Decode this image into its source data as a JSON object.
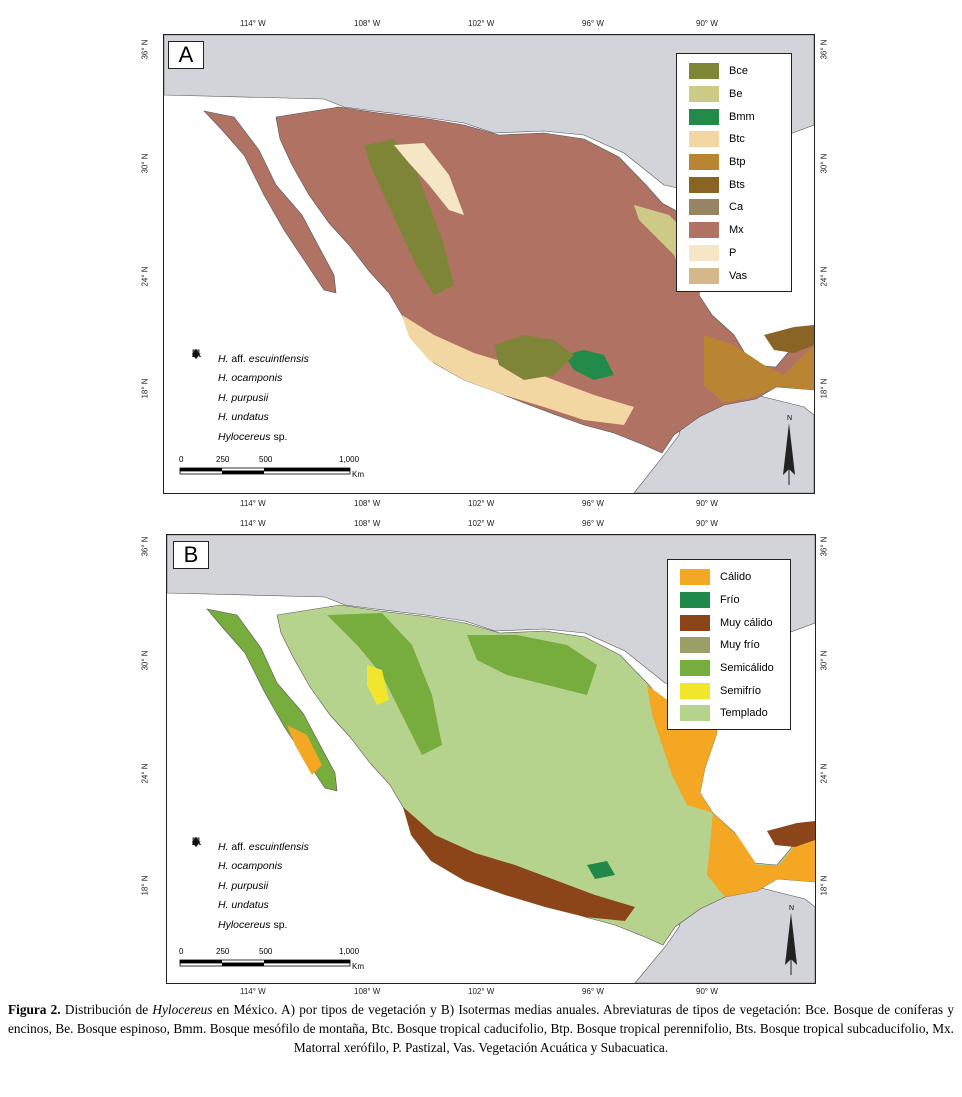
{
  "axes": {
    "longitudes": [
      "114° W",
      "108° W",
      "102° W",
      "96° W",
      "90° W"
    ],
    "latitudes": [
      "36° N",
      "30° N",
      "24° N",
      "18° N"
    ]
  },
  "panel_a": {
    "tag": "A",
    "legend": [
      {
        "code": "Bce",
        "color": "#7f8536"
      },
      {
        "code": "Be",
        "color": "#cdca87"
      },
      {
        "code": "Bmm",
        "color": "#238b4a"
      },
      {
        "code": "Btc",
        "color": "#f3d7a3"
      },
      {
        "code": "Btp",
        "color": "#ba8532"
      },
      {
        "code": "Bts",
        "color": "#8a6425"
      },
      {
        "code": "Ca",
        "color": "#978463"
      },
      {
        "code": "Mx",
        "color": "#b07363"
      },
      {
        "code": "P",
        "color": "#f5e6c6"
      },
      {
        "code": "Vas",
        "color": "#d4b88c"
      }
    ]
  },
  "panel_b": {
    "tag": "B",
    "legend": [
      {
        "code": "Cálido",
        "color": "#f4a722"
      },
      {
        "code": "Frío",
        "color": "#20894a"
      },
      {
        "code": "Muy cálido",
        "color": "#8c4419"
      },
      {
        "code": "Muy frío",
        "color": "#9b9e66"
      },
      {
        "code": "Semicálido",
        "color": "#76ad3d"
      },
      {
        "code": "Semifrío",
        "color": "#f2e62c"
      },
      {
        "code": "Templado",
        "color": "#b6d38d"
      }
    ]
  },
  "species": [
    {
      "prefix": "H.",
      "epithet_italic": "aff.",
      "name": "escuintlensis",
      "symbol": "square"
    },
    {
      "prefix": "H.",
      "epithet_italic": "",
      "name": "ocamponis",
      "symbol": "triangle"
    },
    {
      "prefix": "H.",
      "epithet_italic": "",
      "name": "purpusii",
      "symbol": "circle"
    },
    {
      "prefix": "H.",
      "epithet_italic": "",
      "name": "undatus",
      "symbol": "star"
    },
    {
      "prefix": "",
      "epithet_italic": "",
      "name": "Hylocereus",
      "suffix": "sp.",
      "symbol": "diamond"
    }
  ],
  "scale_bar": {
    "ticks": [
      "0",
      "250",
      "500",
      "1,000"
    ],
    "unit": "Km"
  },
  "north_label": "N",
  "caption": {
    "label": "Figura 2.",
    "part1": " Distribución de ",
    "genus": "Hylocereus",
    "part2": " en México. A) por tipos de vegetación y B) Isotermas medias anuales. Abreviaturas de tipos de vegetación: Bce. Bosque de coníferas y encinos, Be. Bosque espinoso, Bmm. Bosque mesófilo de montaña, Btc. Bosque tropical caducifolio, Btp. Bosque tropical perennifolio, Bts. Bosque tropical subcaducifolio, Mx. Matorral xerófilo, P. Pastizal, Vas. Vegetación Acuática y Subacuatica."
  }
}
